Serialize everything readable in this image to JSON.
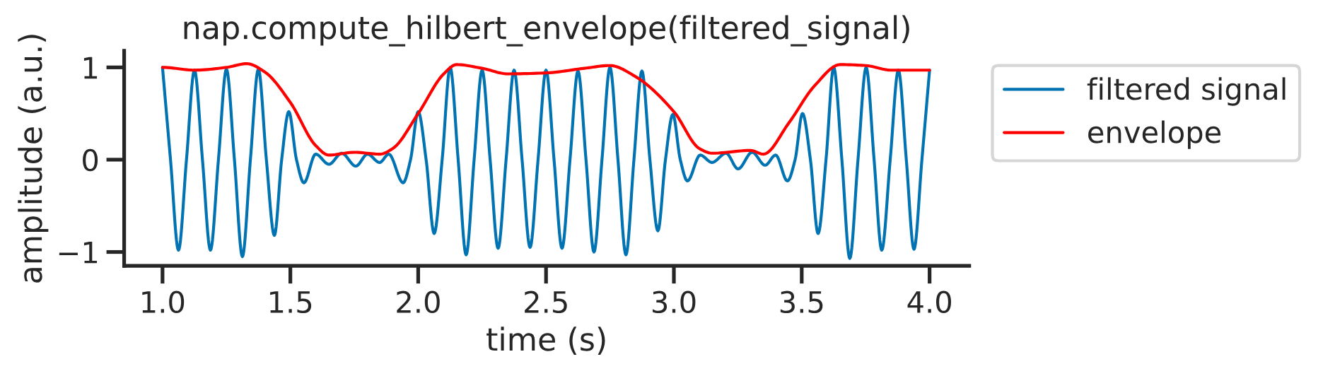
{
  "chart_data": {
    "type": "line",
    "title": "nap.compute_hilbert_envelope(filtered_signal)",
    "xlabel": "time (s)",
    "ylabel": "amplitude (a.u.)",
    "series": [
      {
        "name": "filtered signal",
        "color": "#0173b2",
        "x": [
          1.0,
          1.03125,
          1.0625,
          1.09375,
          1.125,
          1.15625,
          1.1875,
          1.21875,
          1.25,
          1.28125,
          1.3125,
          1.34375,
          1.375,
          1.40625,
          1.4375,
          1.466,
          1.494,
          1.524,
          1.553,
          1.599,
          1.651,
          1.701,
          1.756,
          1.802,
          1.849,
          1.885,
          1.941,
          1.97,
          2.0,
          2.031,
          2.0625,
          2.09375,
          2.125,
          2.15625,
          2.1875,
          2.21875,
          2.25,
          2.28125,
          2.3125,
          2.34375,
          2.375,
          2.40625,
          2.4375,
          2.46875,
          2.5,
          2.53125,
          2.5625,
          2.59375,
          2.625,
          2.65625,
          2.6875,
          2.71875,
          2.75,
          2.78125,
          2.8125,
          2.84375,
          2.875,
          2.90625,
          2.9375,
          2.967,
          2.996,
          3.025,
          3.053,
          3.103,
          3.149,
          3.204,
          3.251,
          3.306,
          3.357,
          3.398,
          3.444,
          3.474,
          3.503,
          3.534,
          3.564,
          3.595,
          3.625,
          3.657,
          3.688,
          3.72,
          3.752,
          3.783,
          3.813,
          3.846,
          3.878,
          3.909,
          3.939,
          3.97,
          4.0
        ],
        "values": [
          1.0,
          0,
          -0.98,
          0,
          0.97,
          0,
          -0.98,
          0,
          0.98,
          0,
          -1.05,
          0,
          0.98,
          0,
          -0.82,
          0,
          0.52,
          0,
          -0.25,
          0.06,
          -0.05,
          0.07,
          -0.07,
          0.06,
          -0.03,
          0.06,
          -0.25,
          0,
          0.52,
          0,
          -0.8,
          0,
          1.0,
          0,
          -1.03,
          0,
          0.97,
          0,
          -0.96,
          0,
          0.97,
          0,
          -0.95,
          0,
          0.97,
          0,
          -0.96,
          0,
          0.96,
          0,
          -1.0,
          0,
          1.0,
          0,
          -1.03,
          0,
          0.96,
          0,
          -0.77,
          0,
          0.49,
          0,
          -0.23,
          0.05,
          -0.03,
          0.07,
          -0.1,
          0.08,
          -0.06,
          0.05,
          -0.23,
          0,
          0.5,
          0,
          -0.8,
          0,
          1.0,
          0,
          -1.07,
          0,
          1.0,
          0,
          -0.98,
          0,
          0.97,
          0,
          -0.97,
          0,
          0.97
        ]
      },
      {
        "name": "envelope",
        "color": "#ff0000",
        "x": [
          1.0,
          1.125,
          1.25,
          1.33,
          1.4,
          1.5,
          1.6,
          1.65,
          1.75,
          1.85,
          1.9,
          2.0,
          2.1,
          2.15,
          2.25,
          2.35,
          2.5,
          2.65,
          2.75,
          2.85,
          3.0,
          3.1,
          3.15,
          3.3,
          3.35,
          3.45,
          3.55,
          3.65,
          3.75,
          3.85,
          4.0
        ],
        "values": [
          1.0,
          0.97,
          1.0,
          1.04,
          0.95,
          0.62,
          0.15,
          0.05,
          0.08,
          0.06,
          0.12,
          0.5,
          0.93,
          1.03,
          0.99,
          0.93,
          0.94,
          0.99,
          1.02,
          0.9,
          0.52,
          0.12,
          0.07,
          0.1,
          0.06,
          0.4,
          0.8,
          1.03,
          1.02,
          0.97,
          0.97
        ]
      }
    ],
    "xlim": [
      0.85,
      4.155
    ],
    "xticks": [
      {
        "value": 1.0,
        "label": "1.0"
      },
      {
        "value": 1.5,
        "label": "1.5"
      },
      {
        "value": 2.0,
        "label": "2.0"
      },
      {
        "value": 2.5,
        "label": "2.5"
      },
      {
        "value": 3.0,
        "label": "3.0"
      },
      {
        "value": 3.5,
        "label": "3.5"
      },
      {
        "value": 4.0,
        "label": "4.0"
      }
    ],
    "ylim": [
      -1.15,
      1.18
    ],
    "yticks": [
      {
        "value": -1,
        "label": "−1"
      },
      0,
      1
    ],
    "legend": "right",
    "grid": false,
    "marker": "none",
    "line_style": "solid"
  }
}
